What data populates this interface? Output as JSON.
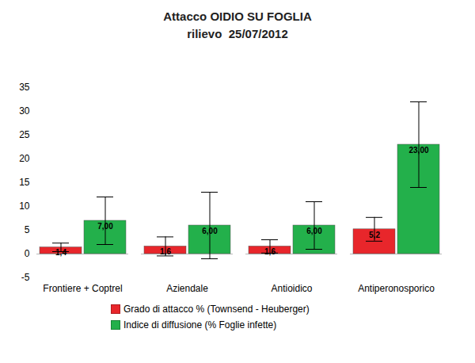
{
  "chart_data": {
    "type": "bar",
    "title": "Attacco OIDIO SU FOGLIA",
    "subtitle": "rilievo  25/07/2012",
    "categories": [
      "Frontiere + Coptrel",
      "Aziendale",
      "Antioidico",
      "Antiperonosporico"
    ],
    "series": [
      {
        "name": "Grado di attacco % (Townsend - Heuberger)",
        "color": "#e8262b",
        "values": [
          1.4,
          1.6,
          1.6,
          5.2
        ],
        "value_labels": [
          "1,4",
          "1,6",
          "1,6",
          "5,2"
        ],
        "errors": [
          0.9,
          2.0,
          1.4,
          2.5
        ]
      },
      {
        "name": "Indice di diffusione (% Foglie infette)",
        "color": "#23b04b",
        "values": [
          7,
          6,
          6,
          23
        ],
        "value_labels": [
          "7,00",
          "6,00",
          "6,00",
          "23,00"
        ],
        "errors": [
          5,
          7,
          5,
          9
        ]
      }
    ],
    "ylim": [
      -5,
      35
    ],
    "yticks": [
      -5,
      0,
      5,
      10,
      15,
      20,
      25,
      30,
      35
    ],
    "grid": false,
    "data_labels": true,
    "legend": "bottom"
  }
}
